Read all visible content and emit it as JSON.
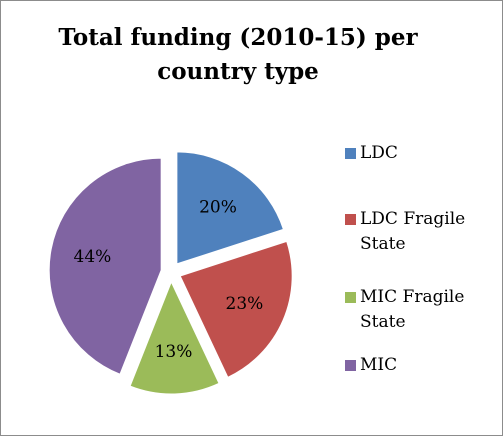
{
  "chart_data": {
    "type": "pie",
    "title": "Total funding (2010-15) per country type",
    "categories": [
      "LDC",
      "LDC Fragile State",
      "MIC Fragile State",
      "MIC"
    ],
    "values": [
      20,
      23,
      13,
      44
    ],
    "value_labels": [
      "20%",
      "23%",
      "13%",
      "44%"
    ],
    "exploded": true,
    "legend_position": "right",
    "colors": [
      "#4f81bd",
      "#c0504d",
      "#9bbb59",
      "#8064a2"
    ]
  },
  "legend": {
    "items": [
      "LDC",
      "LDC Fragile\nState",
      "MIC Fragile\nState",
      "MIC"
    ]
  }
}
